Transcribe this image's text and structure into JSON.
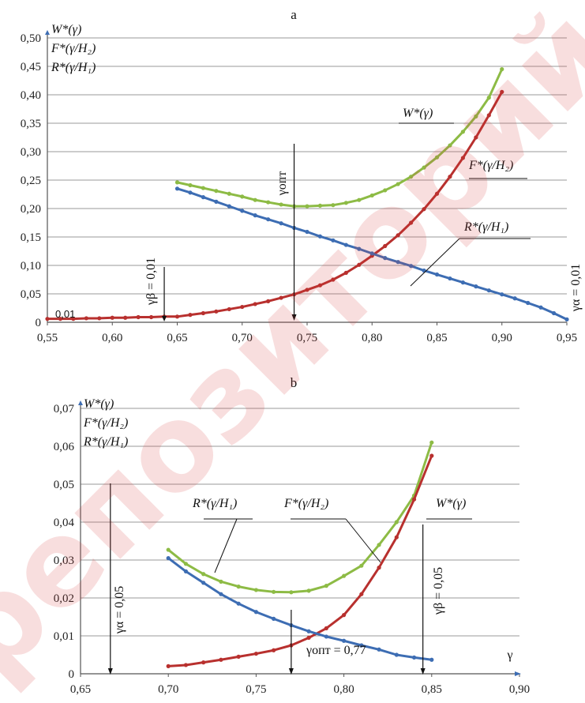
{
  "watermark": "репозиторий",
  "chart_data": [
    {
      "id": "a",
      "type": "line",
      "title": "a",
      "legend_lines": [
        "W*(γ)",
        "F*(γ/H₂)",
        "R*(γ/H₁)"
      ],
      "xlim": [
        0.55,
        0.95
      ],
      "ylim": [
        0,
        0.5
      ],
      "x_ticks": [
        "0,55",
        "0,60",
        "0,65",
        "0,70",
        "0,75",
        "0,80",
        "0,85",
        "0,90",
        "0,95"
      ],
      "y_ticks": [
        "0",
        "0,05",
        "0,10",
        "0,15",
        "0,20",
        "0,25",
        "0,30",
        "0,35",
        "0,40",
        "0,45",
        "0,50"
      ],
      "grid": true,
      "series": [
        {
          "name": "W*(γ)",
          "color": "#8dbb45",
          "x": [
            0.65,
            0.66,
            0.67,
            0.68,
            0.69,
            0.7,
            0.71,
            0.72,
            0.73,
            0.74,
            0.75,
            0.76,
            0.77,
            0.78,
            0.79,
            0.8,
            0.81,
            0.82,
            0.83,
            0.84,
            0.85,
            0.86,
            0.87,
            0.88,
            0.89,
            0.9
          ],
          "y": [
            0.246,
            0.241,
            0.236,
            0.231,
            0.226,
            0.221,
            0.215,
            0.211,
            0.207,
            0.204,
            0.204,
            0.205,
            0.206,
            0.21,
            0.215,
            0.223,
            0.232,
            0.243,
            0.256,
            0.272,
            0.29,
            0.311,
            0.335,
            0.362,
            0.395,
            0.445
          ]
        },
        {
          "name": "F*(γ/H₂)",
          "color": "#b8302e",
          "x": [
            0.55,
            0.56,
            0.57,
            0.58,
            0.59,
            0.6,
            0.61,
            0.62,
            0.63,
            0.64,
            0.65,
            0.66,
            0.67,
            0.68,
            0.69,
            0.7,
            0.71,
            0.72,
            0.73,
            0.74,
            0.75,
            0.76,
            0.77,
            0.78,
            0.79,
            0.8,
            0.81,
            0.82,
            0.83,
            0.84,
            0.85,
            0.86,
            0.87,
            0.88,
            0.89,
            0.9
          ],
          "y": [
            0.006,
            0.006,
            0.006,
            0.007,
            0.007,
            0.008,
            0.008,
            0.009,
            0.009,
            0.01,
            0.01,
            0.013,
            0.016,
            0.019,
            0.023,
            0.027,
            0.032,
            0.037,
            0.043,
            0.049,
            0.057,
            0.065,
            0.075,
            0.087,
            0.101,
            0.117,
            0.134,
            0.153,
            0.175,
            0.199,
            0.226,
            0.256,
            0.289,
            0.325,
            0.364,
            0.405
          ]
        },
        {
          "name": "R*(γ/H₁)",
          "color": "#3d6db3",
          "x": [
            0.65,
            0.66,
            0.67,
            0.68,
            0.69,
            0.7,
            0.71,
            0.72,
            0.73,
            0.74,
            0.75,
            0.76,
            0.77,
            0.78,
            0.79,
            0.8,
            0.81,
            0.82,
            0.83,
            0.84,
            0.85,
            0.86,
            0.87,
            0.88,
            0.89,
            0.9,
            0.91,
            0.92,
            0.93,
            0.94,
            0.95
          ],
          "y": [
            0.235,
            0.228,
            0.22,
            0.212,
            0.204,
            0.196,
            0.188,
            0.181,
            0.174,
            0.166,
            0.159,
            0.151,
            0.144,
            0.136,
            0.129,
            0.121,
            0.113,
            0.106,
            0.099,
            0.091,
            0.084,
            0.077,
            0.07,
            0.063,
            0.056,
            0.049,
            0.042,
            0.034,
            0.026,
            0.016,
            0.005
          ]
        }
      ],
      "annotations": {
        "w_label": "W*(γ)",
        "f_label": "F*(γ/H₂)",
        "r_label": "R*(γ/H₁)",
        "gamma_opt": "γопт",
        "gamma_opt_x": 0.74,
        "gamma_beta": "γβ = 0,01",
        "gamma_beta_x": 0.64,
        "gamma_alpha": "γα = 0,01",
        "gamma_alpha_x": 0.95,
        "small_value": "0,01"
      }
    },
    {
      "id": "b",
      "type": "line",
      "title": "b",
      "legend_lines": [
        "W*(γ)",
        "F*(γ/H₂)",
        "R*(γ/H₁)"
      ],
      "xlim": [
        0.65,
        0.9
      ],
      "ylim": [
        0,
        0.07
      ],
      "x_ticks": [
        "0,65",
        "0,70",
        "0,75",
        "0,80",
        "0,85",
        "0,90"
      ],
      "y_ticks": [
        "0",
        "0,01",
        "0,02",
        "0,03",
        "0,04",
        "0,05",
        "0,06",
        "0,07"
      ],
      "x_axis_label": "γ",
      "grid": true,
      "series": [
        {
          "name": "W*(γ)",
          "color": "#8dbb45",
          "x": [
            0.7,
            0.71,
            0.72,
            0.73,
            0.74,
            0.75,
            0.76,
            0.77,
            0.78,
            0.79,
            0.8,
            0.81,
            0.82,
            0.83,
            0.84,
            0.85
          ],
          "y": [
            0.0327,
            0.029,
            0.0263,
            0.0243,
            0.023,
            0.0221,
            0.0216,
            0.0215,
            0.0219,
            0.0232,
            0.0258,
            0.0285,
            0.034,
            0.04,
            0.047,
            0.061
          ]
        },
        {
          "name": "F*(γ/H₂)",
          "color": "#b8302e",
          "x": [
            0.7,
            0.71,
            0.72,
            0.73,
            0.74,
            0.75,
            0.76,
            0.77,
            0.78,
            0.79,
            0.8,
            0.81,
            0.82,
            0.83,
            0.84,
            0.85
          ],
          "y": [
            0.002,
            0.0023,
            0.003,
            0.0037,
            0.0045,
            0.0053,
            0.0062,
            0.0075,
            0.0095,
            0.012,
            0.0155,
            0.021,
            0.028,
            0.036,
            0.046,
            0.0575
          ]
        },
        {
          "name": "R*(γ/H₁)",
          "color": "#3d6db3",
          "x": [
            0.7,
            0.71,
            0.72,
            0.73,
            0.74,
            0.75,
            0.76,
            0.77,
            0.78,
            0.79,
            0.8,
            0.81,
            0.82,
            0.83,
            0.84,
            0.85
          ],
          "y": [
            0.0305,
            0.027,
            0.024,
            0.021,
            0.0185,
            0.0163,
            0.0145,
            0.0128,
            0.0112,
            0.0098,
            0.0087,
            0.0075,
            0.0064,
            0.005,
            0.0043,
            0.0037
          ]
        }
      ],
      "annotations": {
        "w_label": "W*(γ)",
        "f_label": "F*(γ/H₂)",
        "r_label": "R*(γ/H₁)",
        "gamma_opt": "γопт = 0,77",
        "gamma_opt_x": 0.77,
        "gamma_alpha": "γα = 0,05",
        "gamma_alpha_x": 0.667,
        "gamma_beta": "γβ = 0,05",
        "gamma_beta_x": 0.845
      }
    }
  ]
}
